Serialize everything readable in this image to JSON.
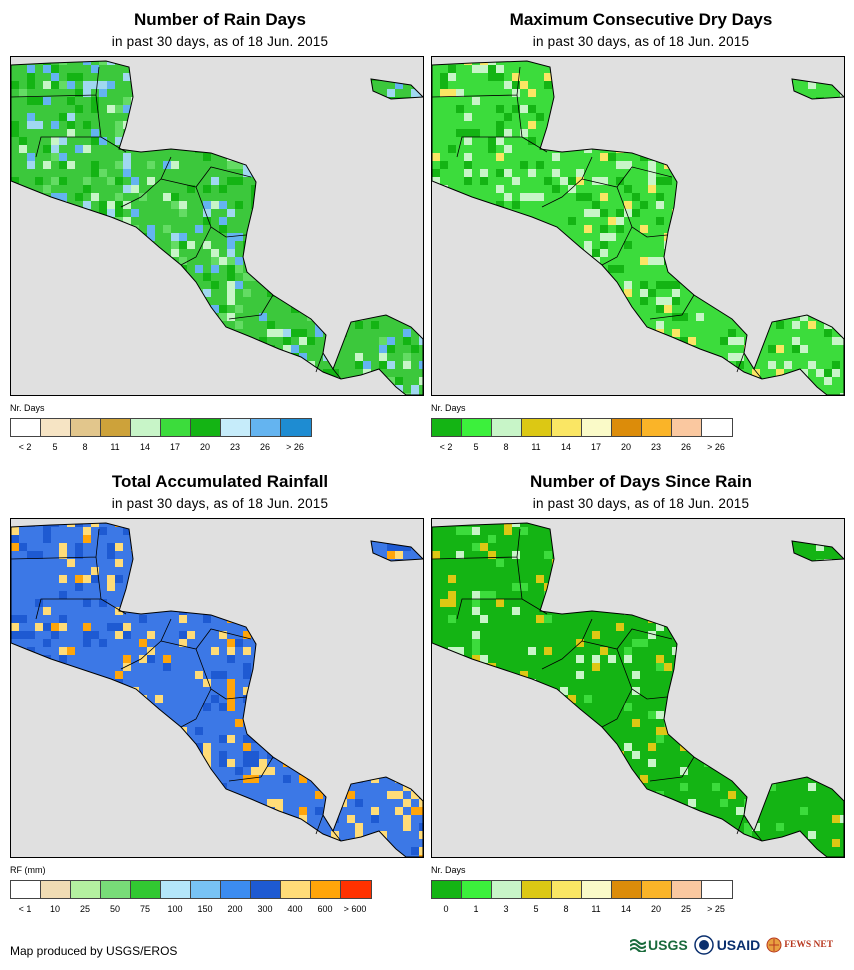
{
  "panels": [
    {
      "title": "Number of Rain Days",
      "subtitle": "in past 30 days, as of 18 Jun. 2015",
      "legend_unit": "Nr. Days",
      "legend_colors": [
        "#ffffff",
        "#f6e4c4",
        "#e2c68c",
        "#cda23a",
        "#c8f5c8",
        "#3cdc3c",
        "#14b414",
        "#c6ecfa",
        "#64b4f0",
        "#1e8cd2"
      ],
      "tick_labels": [
        "< 2",
        "5",
        "8",
        "11",
        "14",
        "17",
        "20",
        "23",
        "26",
        "> 26"
      ],
      "dominant_color": "#3cc83c",
      "map_palette": [
        "#3cc83c",
        "#14b414",
        "#64dc64",
        "#c8f5c8",
        "#a0d8f0",
        "#64b4f0",
        "#3cc83c",
        "#14b414"
      ]
    },
    {
      "title": "Maximum Consecutive Dry Days",
      "subtitle": "in past 30 days, as of 18 Jun. 2015",
      "legend_unit": "Nr. Days",
      "legend_colors": [
        "#14b414",
        "#3cf03c",
        "#c8f5c8",
        "#dcc814",
        "#fae664",
        "#fafac8",
        "#dc8c0a",
        "#fab428",
        "#fac8a0",
        "#ffffff"
      ],
      "tick_labels": [
        "< 2",
        "5",
        "8",
        "11",
        "14",
        "17",
        "20",
        "23",
        "26",
        "> 26"
      ],
      "dominant_color": "#3cdc3c",
      "map_palette": [
        "#3cdc3c",
        "#14b414",
        "#c8f5c8",
        "#3cdc3c",
        "#fae664",
        "#14b414",
        "#3cdc3c",
        "#c8f5c8"
      ]
    },
    {
      "title": "Total Accumulated Rainfall",
      "subtitle": "in past 30 days, as of 18 Jun. 2015",
      "legend_unit": "RF (mm)",
      "legend_colors": [
        "#ffffff",
        "#f0dcb4",
        "#b4f0a0",
        "#78dc78",
        "#32c832",
        "#b4e6fa",
        "#78c3f5",
        "#3c8cf0",
        "#1e5ad2",
        "#ffdc78",
        "#ffa50a",
        "#ff3200"
      ],
      "tick_labels": [
        "< 1",
        "10",
        "25",
        "50",
        "75",
        "100",
        "150",
        "200",
        "300",
        "400",
        "600",
        "> 600"
      ],
      "dominant_color": "#3c78e6",
      "map_palette": [
        "#3c78e6",
        "#1e5ad2",
        "#ffdc78",
        "#3c78e6",
        "#ffa50a",
        "#3c78e6",
        "#ffdc78",
        "#1e5ad2"
      ]
    },
    {
      "title": "Number of Days Since Rain",
      "subtitle": "in past 30 days, as of 18 Jun. 2015",
      "legend_unit": "Nr. Days",
      "legend_colors": [
        "#14b414",
        "#3cf03c",
        "#c8f5c8",
        "#dcc814",
        "#fae664",
        "#fafac8",
        "#dc8c0a",
        "#fab428",
        "#fac8a0",
        "#ffffff"
      ],
      "tick_labels": [
        "0",
        "1",
        "3",
        "5",
        "8",
        "11",
        "14",
        "20",
        "25",
        "> 25"
      ],
      "dominant_color": "#14b414",
      "map_palette": [
        "#14b414",
        "#14b414",
        "#14b414",
        "#3cdc3c",
        "#c8f5c8",
        "#dcc814",
        "#14b414",
        "#14b414"
      ]
    }
  ],
  "footer": "Map produced by USGS/EROS",
  "logos": {
    "usgs": "USGS",
    "usaid": "USAID",
    "fews": "FEWS NET"
  }
}
